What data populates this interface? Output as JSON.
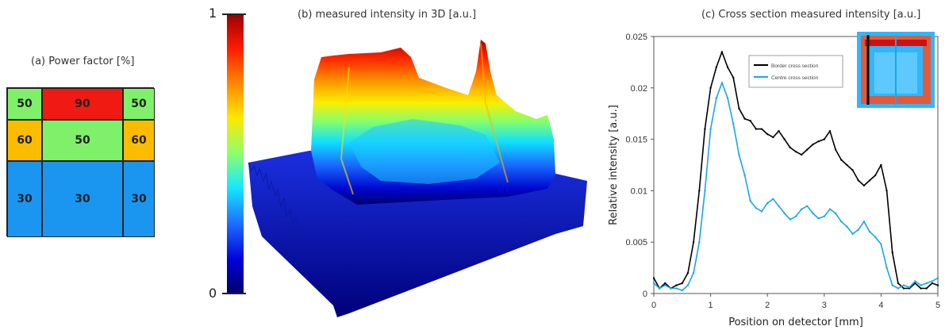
{
  "power_factor": {
    "title": "(a) Power factor [%]",
    "rows": [
      [
        {
          "value": "50",
          "color": "#7ff06a"
        },
        {
          "value": "90",
          "color": "#f01a12"
        },
        {
          "value": "50",
          "color": "#7ff06a"
        }
      ],
      [
        {
          "value": "60",
          "color": "#fbbc00"
        },
        {
          "value": "50",
          "color": "#7ff06a"
        },
        {
          "value": "60",
          "color": "#fbbc00"
        }
      ],
      [
        {
          "value": "30",
          "color": "#1b96f0"
        },
        {
          "value": "30",
          "color": "#1b96f0"
        },
        {
          "value": "30",
          "color": "#1b96f0"
        }
      ]
    ]
  },
  "surface_3d": {
    "title": "(b) measured intensity in 3D [a.u.]",
    "colorbar_max": "1",
    "colorbar_min": "0"
  },
  "cross_section": {
    "title": "(c) Cross section measured intensity [a.u.]"
  },
  "chart_data": {
    "type": "line",
    "title": "(c) Cross section measured intensity [a.u.]",
    "xlabel": "Position on detector [mm]",
    "ylabel": "Relative intensity [a.u.]",
    "xlim": [
      0,
      5
    ],
    "ylim": [
      0,
      0.025
    ],
    "xticks": [
      "0",
      "1",
      "2",
      "3",
      "4",
      "5"
    ],
    "yticks": [
      "0",
      "0.005",
      "0.01",
      "0.015",
      "0.02",
      "0.025"
    ],
    "grid": false,
    "legend_position": "top-right",
    "series": [
      {
        "name": "Border cross section",
        "color": "#000000",
        "x": [
          0,
          0.1,
          0.2,
          0.3,
          0.4,
          0.5,
          0.6,
          0.7,
          0.8,
          0.9,
          1.0,
          1.1,
          1.2,
          1.3,
          1.4,
          1.5,
          1.6,
          1.7,
          1.8,
          1.9,
          2.0,
          2.1,
          2.2,
          2.3,
          2.4,
          2.5,
          2.6,
          2.7,
          2.8,
          2.9,
          3.0,
          3.1,
          3.2,
          3.3,
          3.4,
          3.5,
          3.6,
          3.7,
          3.8,
          3.9,
          4.0,
          4.1,
          4.2,
          4.3,
          4.4,
          4.5,
          4.6,
          4.7,
          4.8,
          4.9,
          5.0
        ],
        "y": [
          0.0015,
          0.0005,
          0.001,
          0.0005,
          0.0008,
          0.001,
          0.002,
          0.005,
          0.01,
          0.016,
          0.02,
          0.022,
          0.0235,
          0.022,
          0.021,
          0.018,
          0.017,
          0.0168,
          0.016,
          0.016,
          0.0155,
          0.0152,
          0.0158,
          0.015,
          0.0142,
          0.0138,
          0.0135,
          0.014,
          0.0145,
          0.0148,
          0.015,
          0.0158,
          0.014,
          0.013,
          0.0125,
          0.012,
          0.011,
          0.0105,
          0.011,
          0.0115,
          0.0125,
          0.01,
          0.004,
          0.001,
          0.0005,
          0.0005,
          0.001,
          0.0005,
          0.0005,
          0.001,
          0.0008
        ]
      },
      {
        "name": "Centre cross section",
        "color": "#1aa7e3",
        "x": [
          0,
          0.1,
          0.2,
          0.3,
          0.4,
          0.5,
          0.6,
          0.7,
          0.8,
          0.9,
          1.0,
          1.1,
          1.2,
          1.3,
          1.4,
          1.5,
          1.6,
          1.7,
          1.8,
          1.9,
          2.0,
          2.1,
          2.2,
          2.3,
          2.4,
          2.5,
          2.6,
          2.7,
          2.8,
          2.9,
          3.0,
          3.1,
          3.2,
          3.3,
          3.4,
          3.5,
          3.6,
          3.7,
          3.8,
          3.9,
          4.0,
          4.1,
          4.2,
          4.3,
          4.4,
          4.5,
          4.6,
          4.7,
          4.8,
          4.9,
          5.0
        ],
        "y": [
          0.001,
          0.0005,
          0.0008,
          0.0005,
          0.0005,
          0.0003,
          0.0008,
          0.002,
          0.005,
          0.01,
          0.016,
          0.019,
          0.0205,
          0.019,
          0.0165,
          0.0135,
          0.0115,
          0.009,
          0.0083,
          0.008,
          0.0088,
          0.0092,
          0.0085,
          0.0078,
          0.0072,
          0.0075,
          0.0082,
          0.0085,
          0.0078,
          0.0073,
          0.0075,
          0.0082,
          0.0078,
          0.007,
          0.0065,
          0.0058,
          0.0062,
          0.007,
          0.006,
          0.0055,
          0.0048,
          0.0025,
          0.0008,
          0.0005,
          0.0008,
          0.0006,
          0.0012,
          0.0008,
          0.001,
          0.0012,
          0.0015
        ]
      }
    ]
  }
}
